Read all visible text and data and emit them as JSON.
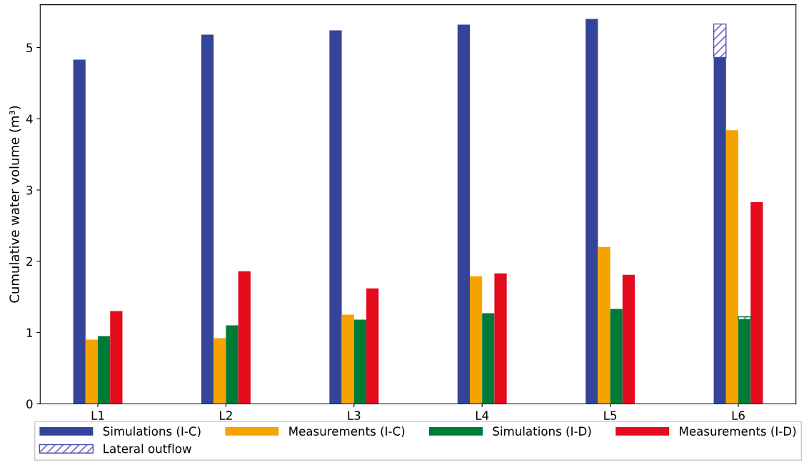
{
  "chart_data": {
    "type": "bar",
    "ylabel": "Cumulative water volume (m³)",
    "categories": [
      "L1",
      "L2",
      "L3",
      "L4",
      "L5",
      "L6"
    ],
    "series": [
      {
        "name": "Simulations (I-C)",
        "color": "#334499",
        "values": [
          4.83,
          5.18,
          5.24,
          5.32,
          5.4,
          4.86
        ]
      },
      {
        "name": "Measurements (I-C)",
        "color": "#f5a300",
        "values": [
          0.9,
          0.92,
          1.25,
          1.79,
          2.2,
          3.84
        ]
      },
      {
        "name": "Simulations (I-D)",
        "color": "#007a37",
        "values": [
          0.95,
          1.1,
          1.18,
          1.27,
          1.33,
          1.18
        ]
      },
      {
        "name": "Measurements (I-D)",
        "color": "#e30b1c",
        "values": [
          1.3,
          1.86,
          1.62,
          1.83,
          1.81,
          2.83
        ]
      },
      {
        "name": "Lateral outflow",
        "color": "#4a4ab8",
        "values": [
          null,
          null,
          null,
          null,
          null,
          0.47
        ],
        "base": [
          null,
          null,
          null,
          null,
          null,
          4.86
        ]
      },
      {
        "color": "#007a37",
        "values": [
          null,
          null,
          null,
          null,
          null,
          0.04
        ],
        "base": [
          null,
          null,
          null,
          null,
          null,
          1.18
        ]
      }
    ],
    "ylim": [
      0,
      5.6
    ],
    "yticks": [
      0,
      1,
      2,
      3,
      4,
      5
    ],
    "grid": false,
    "legend": "bottom"
  }
}
